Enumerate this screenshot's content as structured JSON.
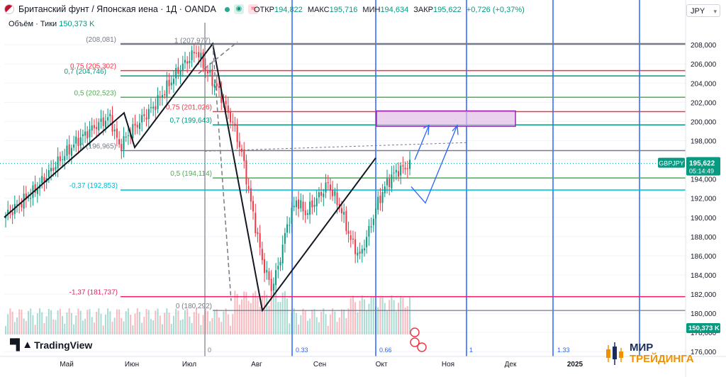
{
  "header": {
    "symbol": "Британский фунт / Японская иена · 1Д · OANDA",
    "ohlc": [
      {
        "label": "ОТКР",
        "value": "194,822"
      },
      {
        "label": "МАКС",
        "value": "195,716"
      },
      {
        "label": "МИН",
        "value": "194,634"
      },
      {
        "label": "ЗАКР",
        "value": "195,622"
      }
    ],
    "change": "+0,726 (+0,37%)",
    "volume_label": "Объём · Тики",
    "volume_value": "150,373 K",
    "currency": "JPY"
  },
  "branding": {
    "tv": "TradingView",
    "brand_line1": "МИР",
    "brand_line2": "ТРЕЙДИНГА"
  },
  "colors": {
    "up": "#089981",
    "down": "#f23645",
    "fib_grey": "#787b86",
    "fib_red": "#f23645",
    "fib_green": "#089981",
    "fib_lime": "#4caf50",
    "fib_teal": "#00bcd4",
    "fib_pink": "#e91e63",
    "time_line": "#2962ff",
    "zone": "#e1bee7",
    "zone_border": "#9c27b0",
    "ticker_bg": "#089981",
    "brand_blue": "#1a2c5b",
    "brand_orange": "#f29100"
  },
  "chart_data": {
    "type": "candlestick",
    "instrument": "GBPJPY",
    "timeframe": "1D",
    "x_ticks": [
      "Май",
      "Июн",
      "Июл",
      "Авг",
      "Сен",
      "Окт",
      "Ноя",
      "Дек",
      "2025"
    ],
    "y_ticks": [
      "208,000",
      "206,000",
      "204,000",
      "202,000",
      "200,000",
      "198,000",
      "196,000",
      "194,000",
      "192,000",
      "190,000",
      "188,000",
      "186,000",
      "184,000",
      "182,000",
      "180,000",
      "178,000",
      "176,000"
    ],
    "ylim": [
      175.5,
      210.3
    ],
    "last_price": {
      "symbol": "GBPJPY",
      "price": "195,622",
      "timer": "05:14:49"
    },
    "volume_last": "150,373 K",
    "fib_top": [
      {
        "label": "1 (207,977)",
        "value": 207.977
      },
      {
        "label": "0,75 (205,302)",
        "value": 205.302
      },
      {
        "label": "0,7 (204,746)",
        "value": 204.746
      },
      {
        "label": "0,5 (202,523)",
        "value": 202.523
      },
      {
        "label": "0 (196,965)",
        "value": 196.965
      }
    ],
    "fib_bottom": [
      {
        "label": "(208,081)",
        "value": 208.081
      },
      {
        "label": "0,75 (201,026)",
        "value": 201.026
      },
      {
        "label": "0,7 (199,643)",
        "value": 199.643
      },
      {
        "label": "0,5 (194,114)",
        "value": 194.114
      },
      {
        "label": "-0,37 (192,853)",
        "value": 192.853
      },
      {
        "label": "-1,37 (181,737)",
        "value": 181.737
      },
      {
        "label": "0 (180,292)",
        "value": 180.292
      }
    ],
    "time_fib_labels": [
      "0",
      "0.33",
      "0.66",
      "1",
      "1.33"
    ],
    "zone": {
      "top": 201.1,
      "bottom": 199.5
    }
  }
}
